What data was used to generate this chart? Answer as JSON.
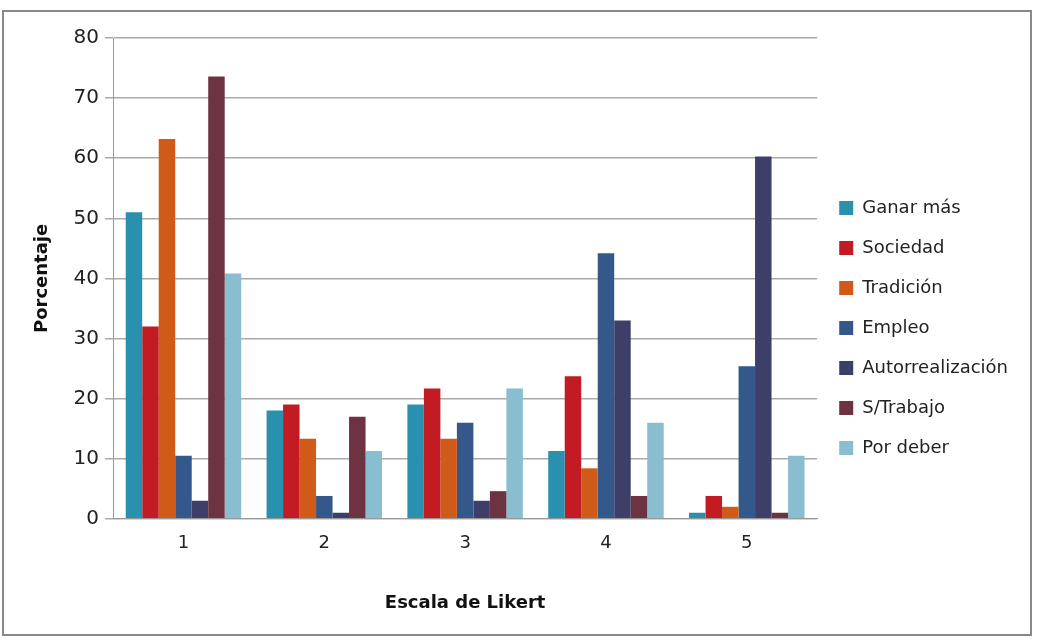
{
  "chart_data": {
    "type": "bar",
    "xlabel": "Escala de Likert",
    "ylabel": "Porcentaje",
    "categories": [
      "1",
      "2",
      "3",
      "4",
      "5"
    ],
    "series": [
      {
        "name": "Ganar más",
        "color": "#2990ad",
        "values": [
          51,
          18,
          19,
          11.3,
          1
        ]
      },
      {
        "name": "Sociedad",
        "color": "#c21b24",
        "values": [
          32,
          19,
          21.7,
          23.7,
          3.8
        ]
      },
      {
        "name": "Tradición",
        "color": "#d05a17",
        "values": [
          63.2,
          13.3,
          13.3,
          8.4,
          2
        ]
      },
      {
        "name": "Empleo",
        "color": "#335889",
        "values": [
          10.5,
          3.8,
          16,
          44.2,
          25.4
        ]
      },
      {
        "name": "Autorrealización",
        "color": "#3e3f69",
        "values": [
          3,
          1,
          3,
          33,
          60.3
        ]
      },
      {
        "name": "S/Trabajo",
        "color": "#6e3340",
        "values": [
          73.6,
          17,
          4.6,
          3.8,
          1
        ]
      },
      {
        "name": "Por deber",
        "color": "#89bdd0",
        "values": [
          40.8,
          11.3,
          21.7,
          16,
          10.5
        ]
      }
    ],
    "ylim": [
      0,
      80
    ],
    "yticks": [
      0,
      10,
      20,
      30,
      40,
      50,
      60,
      70,
      80
    ],
    "grid": "y",
    "legend": "right"
  }
}
